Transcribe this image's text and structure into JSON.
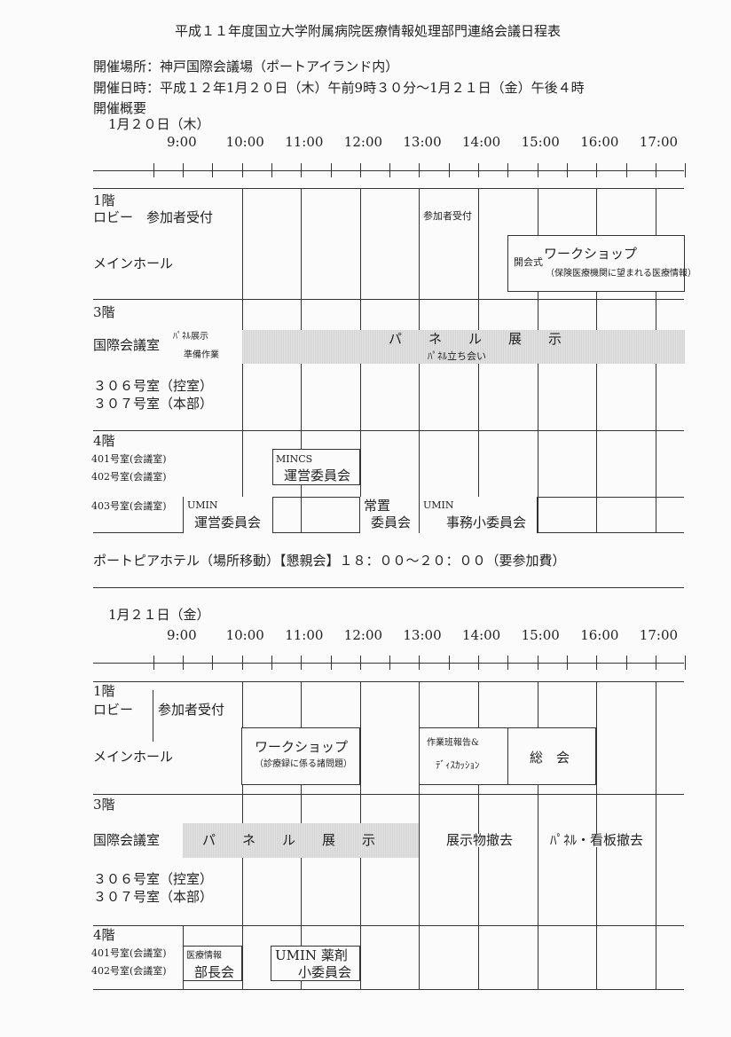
{
  "title": "平成１１年度国立大学附属病院医療情報処理部門連絡会議日程表",
  "info": {
    "venue": "開催場所：神戸国際会議場（ポートアイランド内）",
    "datetime": "開催日時：平成１２年1月２０日（木）午前9時３０分～1月２１日（金）午後４時",
    "overview": "開催概要"
  },
  "times": [
    "9:00",
    "10:00",
    "11:00",
    "12:00",
    "13:00",
    "14:00",
    "15:00",
    "16:00",
    "17:00"
  ],
  "day1": {
    "date": "1月２０日（木）",
    "floor1": "1階",
    "lobby": "ロビー　参加者受付",
    "lobby_event": "参加者受付",
    "main_hall": "メインホール",
    "opening": "開会式",
    "workshop_title": "ワークショップ",
    "workshop_sub": "（保険医療機関に望まれる医療情報）",
    "floor3": "3階",
    "intl_room": "国際会議室",
    "panel_prep_1": "ﾊﾟﾈﾙ展示",
    "panel_prep_2": "準備作業",
    "panel_exhibit": "パ　　ネ　　ル　　展　　示",
    "panel_attend": "ﾊﾟﾈﾙ立ち会い",
    "room306": "３０６号室（控室）",
    "room307": "３０７号室（本部）",
    "floor4": "4階",
    "room401": "401号室(会議室)",
    "room402": "402号室(会議室)",
    "room403": "403号室(会議室)",
    "mincs_1": "MINCS",
    "mincs_2": "運営委員会",
    "umin_1": "UMIN",
    "umin_2": "運営委員会",
    "standing_1": "常置",
    "standing_2": "委員会",
    "umin_office_1": "UMIN",
    "umin_office_2": "事務小委員会"
  },
  "reception": "ポートピアホテル（場所移動）【懇親会】１８：００～２０：００（要参加費）",
  "day2": {
    "date": "1月２１日（金）",
    "floor1": "1階",
    "lobby": "ロビー",
    "lobby_event": "参加者受付",
    "main_hall": "メインホール",
    "workshop_title": "ワークショップ",
    "workshop_sub": "（診療録に係る諸問題）",
    "report_1": "作業班報告&",
    "report_2": "ﾃﾞｨｽｶｯｼｮﾝ",
    "general": "総　会",
    "floor3": "3階",
    "intl_room": "国際会議室",
    "panel_exhibit": "パ　　ネ　　ル　　展　　示",
    "remove_exhibits": "展示物撤去",
    "remove_panels": "ﾊﾟﾈﾙ・看板撤去",
    "room306": "３０６号室（控室）",
    "room307": "３０７号室（本部）",
    "floor4": "4階",
    "room401": "401号室(会議室)",
    "room402": "402号室(会議室)",
    "directors_1": "医療情報",
    "directors_2": "部長会",
    "pharm_1": "UMIN 薬剤",
    "pharm_2": "小委員会"
  }
}
